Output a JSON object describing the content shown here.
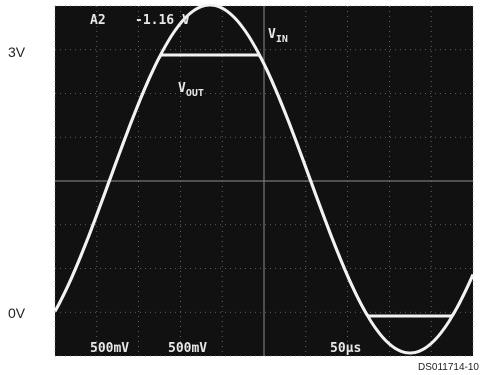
{
  "labels": {
    "top": "3V",
    "bottom": "0V"
  },
  "screen": {
    "channel": "A2",
    "offset": "-1.16 V",
    "vin": {
      "main": "V",
      "sub": "IN"
    },
    "vout": {
      "main": "V",
      "sub": "OUT"
    },
    "bottom": [
      "500mV",
      "500mV",
      "50µs"
    ]
  },
  "footer": "DS011714-10"
}
